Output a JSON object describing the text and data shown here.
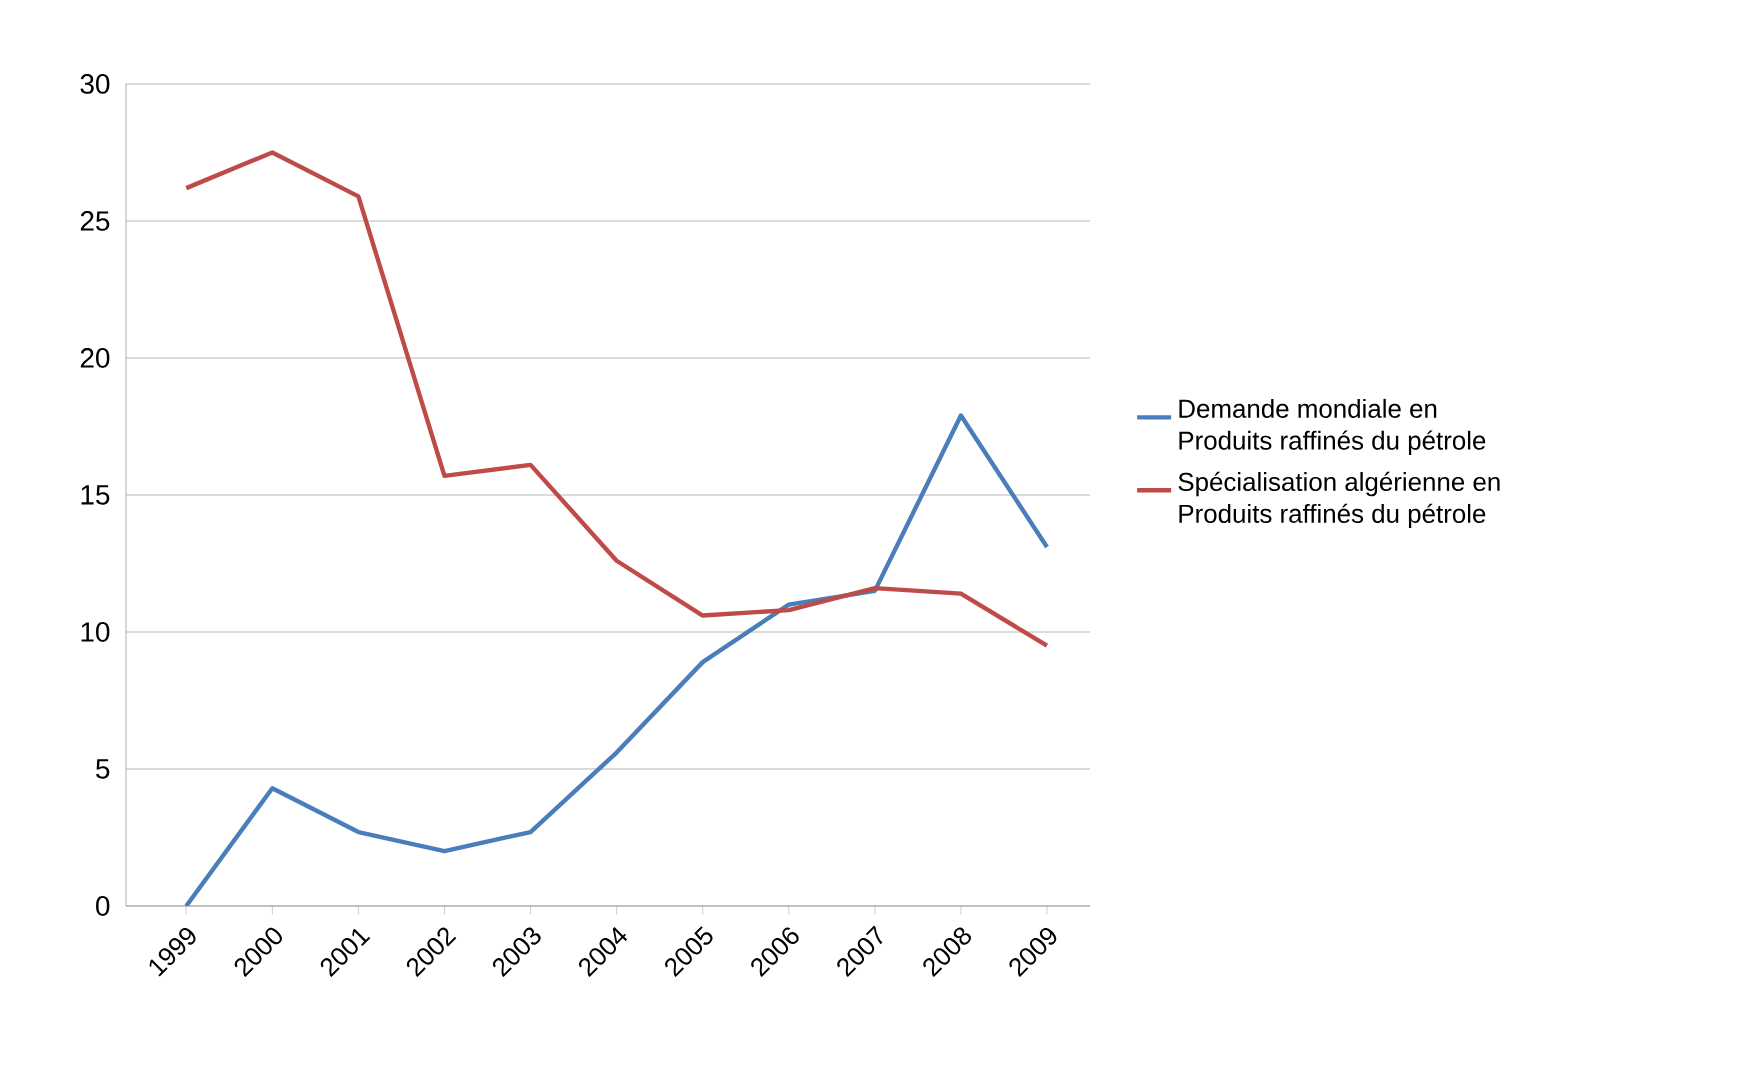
{
  "chart_data": {
    "type": "line",
    "categories": [
      "1999",
      "2000",
      "2001",
      "2002",
      "2003",
      "2004",
      "2005",
      "2006",
      "2007",
      "2008",
      "2009"
    ],
    "series": [
      {
        "name": "Demande mondiale en Produits raffinés du pétrole",
        "color": "#4a7ebb",
        "values": [
          0,
          4.3,
          2.7,
          2.0,
          2.7,
          5.6,
          8.9,
          11.0,
          11.5,
          17.9,
          13.1
        ]
      },
      {
        "name": "Spécialisation algérienne en  Produits raffinés du pétrole",
        "color": "#be4b48",
        "values": [
          26.2,
          27.5,
          25.9,
          15.7,
          16.1,
          12.6,
          10.6,
          10.8,
          11.6,
          11.4,
          9.5
        ]
      }
    ],
    "ylim": [
      0,
      30
    ],
    "yticks": [
      0,
      5,
      10,
      15,
      20,
      25,
      30
    ],
    "grid": "y",
    "legend": "right",
    "marker": "none",
    "line_style": "solid"
  }
}
